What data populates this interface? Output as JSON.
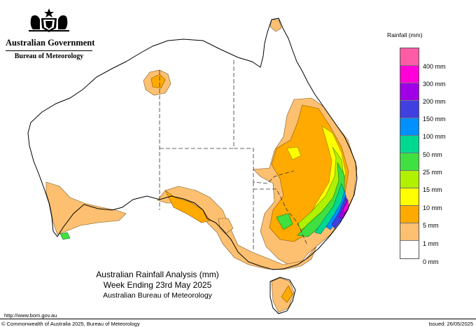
{
  "header": {
    "government": "Australian Government",
    "bureau": "Bureau of Meteorology"
  },
  "legend": {
    "title": "Rainfall (mm)",
    "swatches": [
      "#ff5ca8",
      "#ff00d8",
      "#a000e6",
      "#4040e0",
      "#0090ff",
      "#00d890",
      "#40e040",
      "#b0f000",
      "#ffff00",
      "#ffaa00",
      "#fcc070",
      "#ffffff"
    ],
    "labels": [
      "400 mm",
      "300 mm",
      "200 mm",
      "150 mm",
      "100 mm",
      "50 mm",
      "25 mm",
      "15 mm",
      "10 mm",
      "5 mm",
      "1 mm",
      "0 mm"
    ]
  },
  "title": {
    "line1": "Australian Rainfall Analysis (mm)",
    "line2": "Week Ending 23rd May 2025",
    "line3": "Australian Bureau of Meteorology"
  },
  "footer": {
    "url": "http://www.bom.gov.au",
    "copyright": "© Commonwealth of Australia 2025, Bureau of Meteorology",
    "issued": "Issued: 26/05/2025"
  },
  "colors": {
    "r1": "#fcc070",
    "r5": "#ffaa00",
    "r10": "#ffff00",
    "r15": "#b0f000",
    "r25": "#40e040",
    "r50": "#00d890",
    "r100": "#0090ff",
    "r150": "#4040e0",
    "r200": "#a000e6",
    "r300": "#ff00d8",
    "r400": "#ff5ca8"
  }
}
